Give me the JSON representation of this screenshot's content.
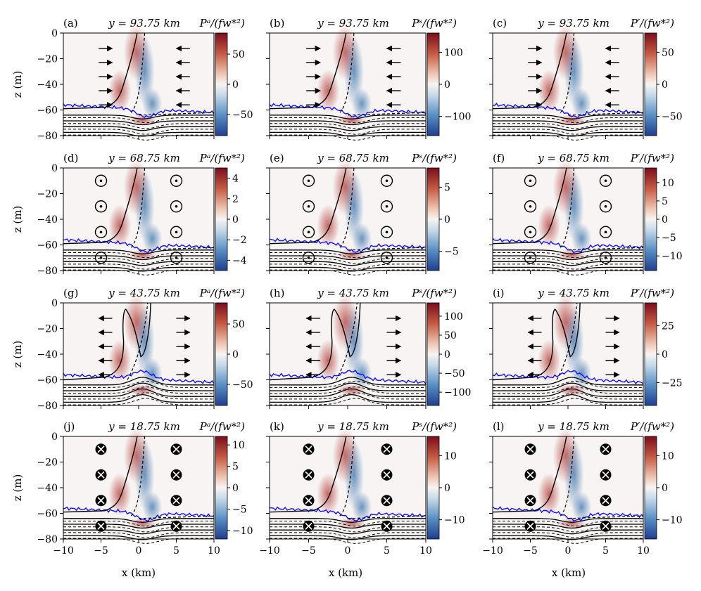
{
  "figure": {
    "xlabel": "x (km)",
    "ylabel": "z (m)",
    "colors": {
      "neg": "#1f3d8f",
      "mid": "#f7f4f3",
      "pos": "#7a0d1c",
      "interface": "#1010ff"
    }
  },
  "chart_data": [
    {
      "id": "a",
      "label": "(a)",
      "ytitle": "y = 93.75 km",
      "ctitle": "Pᵃ/(fw*²)",
      "type": "heatmap",
      "xlim": [
        -10,
        10
      ],
      "ylim": [
        -80,
        0
      ],
      "xticks": [
        "−10",
        "−5",
        "0",
        "5",
        "10"
      ],
      "yticks": [
        "0",
        "−20",
        "−40",
        "−60",
        "−80"
      ],
      "cbar_ticks": [
        {
          "v": 50,
          "t": "50"
        },
        {
          "v": 0,
          "t": "0"
        },
        {
          "v": -50,
          "t": "−50"
        }
      ],
      "cbar_range": [
        -85,
        85
      ],
      "symbols": "right-arrows"
    },
    {
      "id": "b",
      "label": "(b)",
      "ytitle": "y = 93.75 km",
      "ctitle": "Pˢ/(fw*²)",
      "type": "heatmap",
      "xlim": [
        -10,
        10
      ],
      "ylim": [
        -80,
        0
      ],
      "xticks": [
        "−10",
        "−5",
        "0",
        "5",
        "10"
      ],
      "yticks": [
        "0",
        "−20",
        "−40",
        "−60",
        "−80"
      ],
      "cbar_ticks": [
        {
          "v": 100,
          "t": "100"
        },
        {
          "v": 0,
          "t": "0"
        },
        {
          "v": -100,
          "t": "−100"
        }
      ],
      "cbar_range": [
        -160,
        160
      ],
      "symbols": "right-arrows"
    },
    {
      "id": "c",
      "label": "(c)",
      "ytitle": "y = 93.75 km",
      "ctitle": "P′/(fw*²)",
      "type": "heatmap",
      "xlim": [
        -10,
        10
      ],
      "ylim": [
        -80,
        0
      ],
      "xticks": [
        "−10",
        "−5",
        "0",
        "5",
        "10"
      ],
      "yticks": [
        "0",
        "−20",
        "−40",
        "−60",
        "−80"
      ],
      "cbar_ticks": [
        {
          "v": 50,
          "t": "50"
        },
        {
          "v": 0,
          "t": "0"
        },
        {
          "v": -50,
          "t": "−50"
        }
      ],
      "cbar_range": [
        -80,
        80
      ],
      "symbols": "right-arrows"
    },
    {
      "id": "d",
      "label": "(d)",
      "ytitle": "y = 68.75 km",
      "ctitle": "Pᵃ/(fw*²)",
      "type": "heatmap",
      "xlim": [
        -10,
        10
      ],
      "ylim": [
        -80,
        0
      ],
      "xticks": [
        "−10",
        "−5",
        "0",
        "5",
        "10"
      ],
      "yticks": [
        "0",
        "−20",
        "−40",
        "−60",
        "−80"
      ],
      "cbar_ticks": [
        {
          "v": 4,
          "t": "4"
        },
        {
          "v": 2,
          "t": "2"
        },
        {
          "v": 0,
          "t": "0"
        },
        {
          "v": -2,
          "t": "−2"
        },
        {
          "v": -4,
          "t": "−4"
        }
      ],
      "cbar_range": [
        -5,
        5
      ],
      "symbols": "dots"
    },
    {
      "id": "e",
      "label": "(e)",
      "ytitle": "y = 68.75 km",
      "ctitle": "Pˢ/(fw*²)",
      "type": "heatmap",
      "xlim": [
        -10,
        10
      ],
      "ylim": [
        -80,
        0
      ],
      "xticks": [
        "−10",
        "−5",
        "0",
        "5",
        "10"
      ],
      "yticks": [
        "0",
        "−20",
        "−40",
        "−60",
        "−80"
      ],
      "cbar_ticks": [
        {
          "v": 5,
          "t": "5"
        },
        {
          "v": 0,
          "t": "0"
        },
        {
          "v": -5,
          "t": "−5"
        }
      ],
      "cbar_range": [
        -8,
        8
      ],
      "symbols": "dots"
    },
    {
      "id": "f",
      "label": "(f)",
      "ytitle": "y = 68.75 km",
      "ctitle": "P′/(fw*²)",
      "type": "heatmap",
      "xlim": [
        -10,
        10
      ],
      "ylim": [
        -80,
        0
      ],
      "xticks": [
        "−10",
        "−5",
        "0",
        "5",
        "10"
      ],
      "yticks": [
        "0",
        "−20",
        "−40",
        "−60",
        "−80"
      ],
      "cbar_ticks": [
        {
          "v": 10,
          "t": "10"
        },
        {
          "v": 5,
          "t": "5"
        },
        {
          "v": 0,
          "t": "0"
        },
        {
          "v": -5,
          "t": "−5"
        },
        {
          "v": -10,
          "t": "−10"
        }
      ],
      "cbar_range": [
        -14,
        14
      ],
      "symbols": "dots"
    },
    {
      "id": "g",
      "label": "(g)",
      "ytitle": "y = 43.75 km",
      "ctitle": "Pᵃ/(fw*²)",
      "type": "heatmap",
      "xlim": [
        -10,
        10
      ],
      "ylim": [
        -80,
        0
      ],
      "xticks": [
        "−10",
        "−5",
        "0",
        "5",
        "10"
      ],
      "yticks": [
        "0",
        "−20",
        "−40",
        "−60",
        "−80"
      ],
      "cbar_ticks": [
        {
          "v": 50,
          "t": "50"
        },
        {
          "v": 0,
          "t": "0"
        },
        {
          "v": -50,
          "t": "−50"
        }
      ],
      "cbar_range": [
        -85,
        85
      ],
      "symbols": "left-arrows"
    },
    {
      "id": "h",
      "label": "(h)",
      "ytitle": "y = 43.75 km",
      "ctitle": "Pˢ/(fw*²)",
      "type": "heatmap",
      "xlim": [
        -10,
        10
      ],
      "ylim": [
        -80,
        0
      ],
      "xticks": [
        "−10",
        "−5",
        "0",
        "5",
        "10"
      ],
      "yticks": [
        "0",
        "−20",
        "−40",
        "−60",
        "−80"
      ],
      "cbar_ticks": [
        {
          "v": 100,
          "t": "100"
        },
        {
          "v": 50,
          "t": "50"
        },
        {
          "v": 0,
          "t": "0"
        },
        {
          "v": -50,
          "t": "−50"
        },
        {
          "v": -100,
          "t": "−100"
        }
      ],
      "cbar_range": [
        -135,
        135
      ],
      "symbols": "left-arrows"
    },
    {
      "id": "i",
      "label": "(i)",
      "ytitle": "y = 43.75 km",
      "ctitle": "P′/(fw*²)",
      "type": "heatmap",
      "xlim": [
        -10,
        10
      ],
      "ylim": [
        -80,
        0
      ],
      "xticks": [
        "−10",
        "−5",
        "0",
        "5",
        "10"
      ],
      "yticks": [
        "0",
        "−20",
        "−40",
        "−60",
        "−80"
      ],
      "cbar_ticks": [
        {
          "v": 25,
          "t": "25"
        },
        {
          "v": 0,
          "t": "0"
        },
        {
          "v": -25,
          "t": "−25"
        }
      ],
      "cbar_range": [
        -45,
        45
      ],
      "symbols": "left-arrows"
    },
    {
      "id": "j",
      "label": "(j)",
      "ytitle": "y = 18.75 km",
      "ctitle": "Pᵃ/(fw*²)",
      "type": "heatmap",
      "xlim": [
        -10,
        10
      ],
      "ylim": [
        -80,
        0
      ],
      "xticks": [
        "−10",
        "−5",
        "0",
        "5",
        "10"
      ],
      "yticks": [
        "0",
        "−20",
        "−40",
        "−60",
        "−80"
      ],
      "cbar_ticks": [
        {
          "v": 10,
          "t": "10"
        },
        {
          "v": 5,
          "t": "5"
        },
        {
          "v": 0,
          "t": "0"
        },
        {
          "v": -5,
          "t": "−5"
        },
        {
          "v": -10,
          "t": "−10"
        }
      ],
      "cbar_range": [
        -12,
        12
      ],
      "symbols": "crosses"
    },
    {
      "id": "k",
      "label": "(k)",
      "ytitle": "y = 18.75 km",
      "ctitle": "Pˢ/(fw*²)",
      "type": "heatmap",
      "xlim": [
        -10,
        10
      ],
      "ylim": [
        -80,
        0
      ],
      "xticks": [
        "−10",
        "−5",
        "0",
        "5",
        "10"
      ],
      "yticks": [
        "0",
        "−20",
        "−40",
        "−60",
        "−80"
      ],
      "cbar_ticks": [
        {
          "v": 10,
          "t": "10"
        },
        {
          "v": 0,
          "t": "0"
        },
        {
          "v": -10,
          "t": "−10"
        }
      ],
      "cbar_range": [
        -16,
        16
      ],
      "symbols": "crosses"
    },
    {
      "id": "l",
      "label": "(l)",
      "ytitle": "y = 18.75 km",
      "ctitle": "P′/(fw*²)",
      "type": "heatmap",
      "xlim": [
        -10,
        10
      ],
      "ylim": [
        -80,
        0
      ],
      "xticks": [
        "−10",
        "−5",
        "0",
        "5",
        "10"
      ],
      "yticks": [
        "0",
        "−20",
        "−40",
        "−60",
        "−80"
      ],
      "cbar_ticks": [
        {
          "v": 10,
          "t": "10"
        },
        {
          "v": 0,
          "t": "0"
        },
        {
          "v": -10,
          "t": "−10"
        }
      ],
      "cbar_range": [
        -16,
        16
      ],
      "symbols": "crosses"
    }
  ]
}
